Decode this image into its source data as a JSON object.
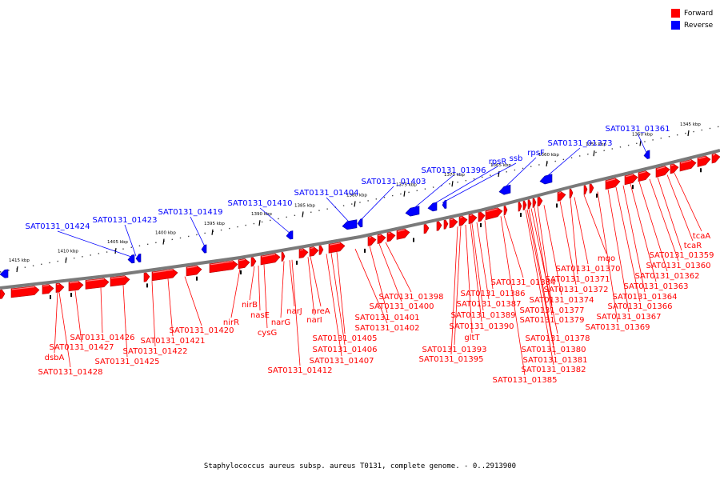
{
  "legend": {
    "forward": {
      "label": "Forward",
      "color": "#ff0000"
    },
    "reverse": {
      "label": "Reverse",
      "color": "#0000ff"
    }
  },
  "caption": "Staphylococcus aureus subsp. aureus T0131, complete genome. - 0..2913900",
  "ruler_ticks": [
    "1345 kbp",
    "1350 kbp",
    "1355 kbp",
    "1360 kbp",
    "1365 kbp",
    "1370 kbp",
    "1375 kbp",
    "1380 kbp",
    "1385 kbp",
    "1390 kbp",
    "1395 kbp",
    "1400 kbp",
    "1405 kbp",
    "1410 kbp",
    "1415 kbp"
  ],
  "reverse_labels": [
    "SAT0131_01361",
    "SAT0131_01373",
    "rpsF",
    "ssb",
    "rpsR",
    "SAT0131_01396",
    "SAT0131_01403",
    "SAT0131_01404",
    "SAT0131_01410",
    "SAT0131_01419",
    "SAT0131_01423",
    "SAT0131_01424"
  ],
  "forward_labels": [
    "tcaA",
    "tcaR",
    "SAT0131_01359",
    "SAT0131_01360",
    "SAT0131_01362",
    "SAT0131_01363",
    "SAT0131_01364",
    "SAT0131_01366",
    "SAT0131_01367",
    "SAT0131_01369",
    "mqo",
    "SAT0131_01370",
    "SAT0131_01371",
    "SAT0131_01372",
    "SAT0131_01374",
    "SAT0131_01377",
    "SAT0131_01379",
    "SAT0131_01378",
    "SAT0131_01380",
    "SAT0131_01381",
    "SAT0131_01382",
    "SAT0131_01384",
    "SAT0131_01385",
    "SAT0131_01386",
    "SAT0131_01387",
    "SAT0131_01389",
    "SAT0131_01390",
    "gltT",
    "SAT0131_01393",
    "SAT0131_01395",
    "SAT0131_01398",
    "SAT0131_01400",
    "SAT0131_01401",
    "SAT0131_01402",
    "nreA",
    "narI",
    "narJ",
    "narG",
    "nasE",
    "nirB",
    "nirR",
    "cysG",
    "SAT0131_01405",
    "SAT0131_01406",
    "SAT0131_01407",
    "SAT0131_01412",
    "SAT0131_01420",
    "SAT0131_01421",
    "SAT0131_01422",
    "SAT0131_01425",
    "SAT0131_01426",
    "SAT0131_01427",
    "dsbA",
    "SAT0131_01428"
  ]
}
